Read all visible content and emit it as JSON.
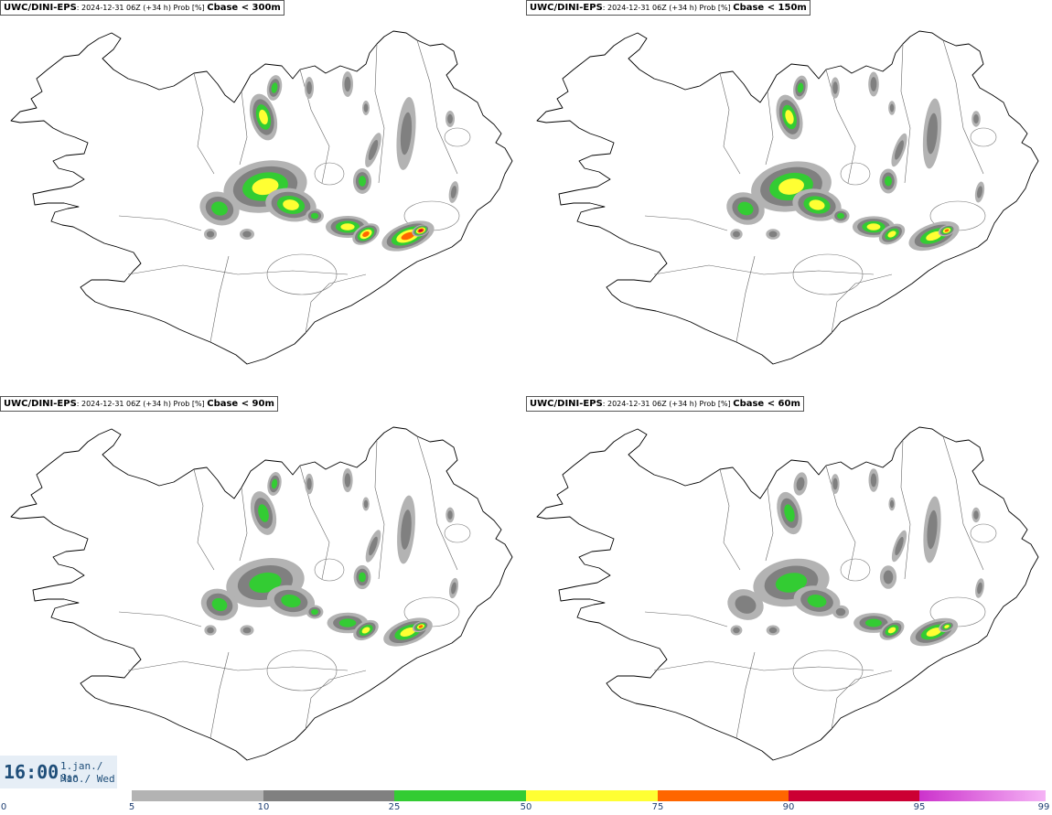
{
  "panels": [
    {
      "source": "UWC/DINI-EPS",
      "meta": ": 2024-12-31 06Z (+34 h) Prob [%] ",
      "threshold": "Cbase < 300m",
      "level": 1.0
    },
    {
      "source": "UWC/DINI-EPS",
      "meta": ": 2024-12-31 06Z (+34 h) Prob [%] ",
      "threshold": "Cbase < 150m",
      "level": 0.85
    },
    {
      "source": "UWC/DINI-EPS",
      "meta": ": 2024-12-31 06Z (+34 h) Prob [%] ",
      "threshold": "Cbase < 90m",
      "level": 0.75
    },
    {
      "source": "UWC/DINI-EPS",
      "meta": ": 2024-12-31 06Z (+34 h) Prob [%] ",
      "threshold": "Cbase < 60m",
      "level": 0.65
    }
  ],
  "time": {
    "clock": "16:00",
    "date_line": "1.jan./ Jan",
    "weekday_line": "Mið./ Wed"
  },
  "colorbar": {
    "segments": [
      {
        "from": 5,
        "to": 10,
        "color": "#b3b3b3"
      },
      {
        "from": 10,
        "to": 25,
        "color": "#808080"
      },
      {
        "from": 25,
        "to": 50,
        "color": "#33cc33"
      },
      {
        "from": 50,
        "to": 75,
        "color": "#ffff33"
      },
      {
        "from": 75,
        "to": 90,
        "color": "#ff6600"
      },
      {
        "from": 90,
        "to": 95,
        "color": "#cc0033"
      },
      {
        "from": 95,
        "to": 99,
        "color": "#cc33cc"
      },
      {
        "from": 99,
        "to": 100,
        "color": "#f5b3f5"
      }
    ],
    "ticks": [
      "0",
      "5",
      "10",
      "25",
      "50",
      "75",
      "90",
      "95",
      "99"
    ]
  },
  "colors": {
    "land_outline": "#000000",
    "coast_fill": "#ffffff"
  }
}
